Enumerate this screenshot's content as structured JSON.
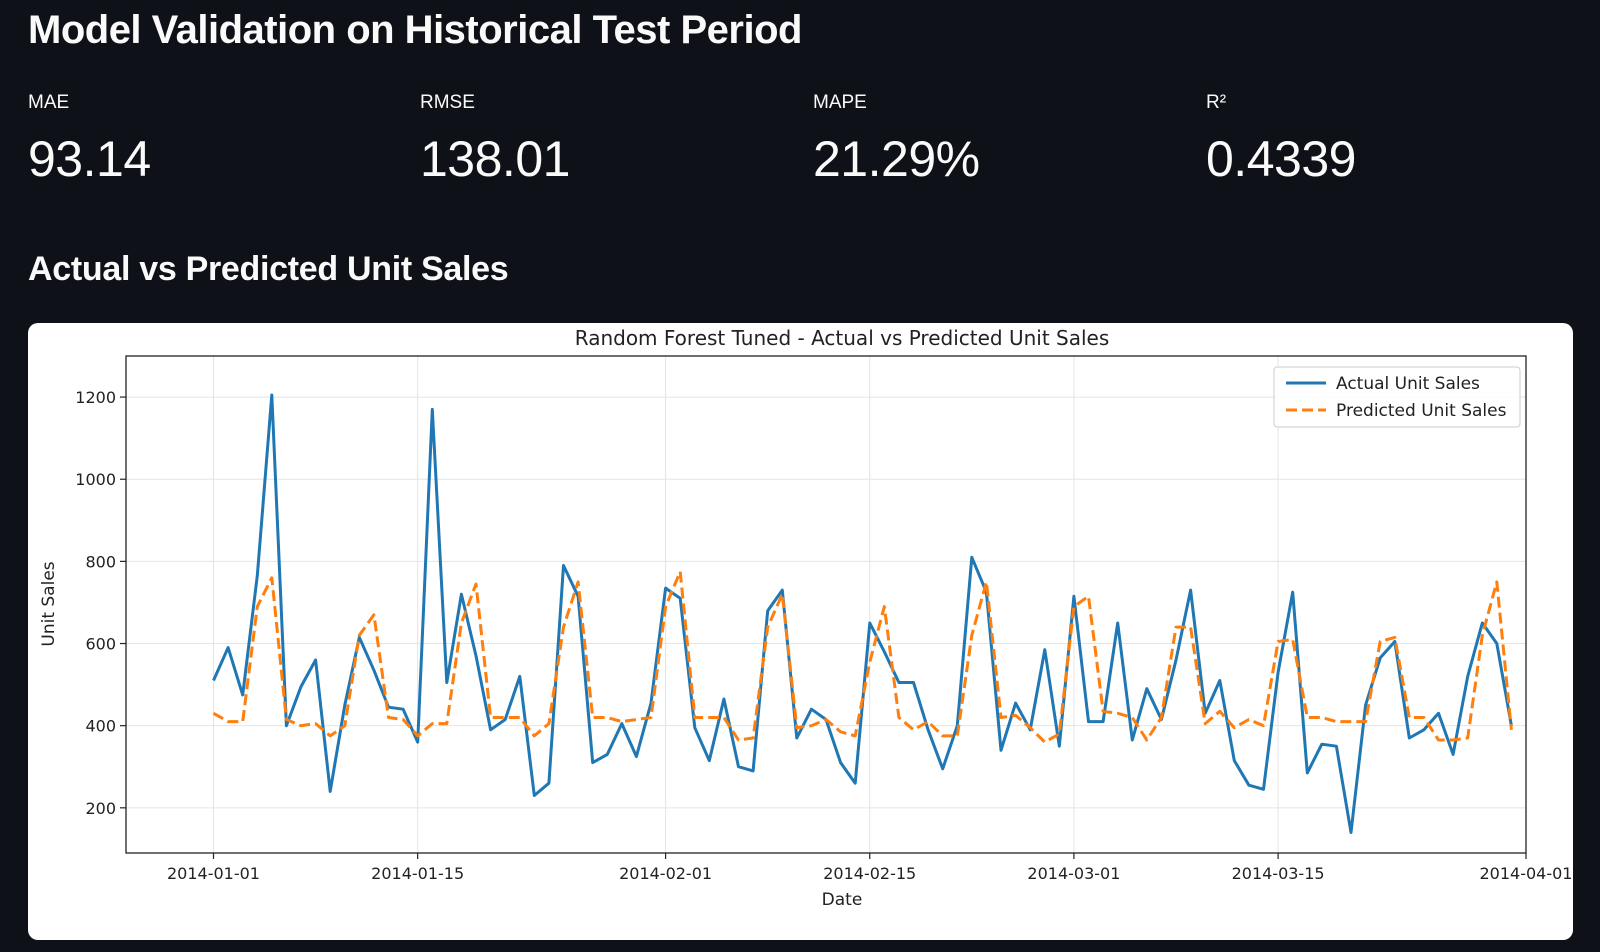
{
  "page": {
    "title": "Model Validation on Historical Test Period"
  },
  "metrics": [
    {
      "label": "MAE",
      "value": "93.14"
    },
    {
      "label": "RMSE",
      "value": "138.01"
    },
    {
      "label": "MAPE",
      "value": "21.29%"
    },
    {
      "label": "R²",
      "value": "0.4339"
    }
  ],
  "section": {
    "title": "Actual vs Predicted Unit Sales"
  },
  "colors": {
    "background": "#0e1117",
    "actual": "#1f77b4",
    "predicted": "#ff7f0e"
  },
  "chart_data": {
    "type": "line",
    "title": "Random Forest Tuned - Actual vs Predicted Unit Sales",
    "xlabel": "Date",
    "ylabel": "Unit Sales",
    "x_start": "2014-01-01",
    "x_ticks": [
      "2014-01-01",
      "2014-01-15",
      "2014-02-01",
      "2014-02-15",
      "2014-03-01",
      "2014-03-15",
      "2014-04-01"
    ],
    "xlim": [
      "2013-12-26",
      "2014-04-01"
    ],
    "y_ticks": [
      200,
      400,
      600,
      800,
      1000,
      1200
    ],
    "ylim": [
      90,
      1300
    ],
    "grid": true,
    "legend_position": "top-right",
    "series": [
      {
        "name": "Actual Unit Sales",
        "style": "solid",
        "values": [
          510,
          590,
          475,
          765,
          1205,
          400,
          495,
          560,
          240,
          450,
          615,
          535,
          445,
          440,
          360,
          1170,
          505,
          720,
          570,
          390,
          415,
          520,
          230,
          260,
          790,
          715,
          310,
          330,
          405,
          325,
          455,
          735,
          710,
          395,
          315,
          465,
          300,
          290,
          680,
          730,
          370,
          440,
          415,
          310,
          260,
          650,
          580,
          505,
          505,
          390,
          295,
          400,
          810,
          725,
          340,
          455,
          390,
          585,
          350,
          715,
          410,
          410,
          650,
          365,
          490,
          415,
          560,
          730,
          430,
          510,
          315,
          255,
          245,
          530,
          725,
          285,
          355,
          350,
          140,
          450,
          565,
          605,
          370,
          390,
          430,
          330,
          520,
          650,
          600,
          400
        ]
      },
      {
        "name": "Predicted Unit Sales",
        "style": "dashed",
        "values": [
          430,
          410,
          410,
          690,
          760,
          415,
          400,
          405,
          375,
          400,
          620,
          670,
          420,
          415,
          375,
          405,
          405,
          650,
          745,
          420,
          420,
          420,
          375,
          405,
          640,
          750,
          420,
          420,
          410,
          415,
          420,
          690,
          775,
          420,
          420,
          420,
          365,
          370,
          640,
          720,
          395,
          400,
          415,
          385,
          375,
          555,
          690,
          420,
          390,
          410,
          375,
          375,
          620,
          750,
          420,
          425,
          395,
          360,
          380,
          690,
          715,
          435,
          430,
          420,
          365,
          420,
          640,
          640,
          405,
          435,
          395,
          415,
          400,
          605,
          610,
          420,
          420,
          410,
          410,
          410,
          605,
          615,
          420,
          420,
          365,
          365,
          370,
          620,
          750,
          390
        ]
      }
    ]
  }
}
